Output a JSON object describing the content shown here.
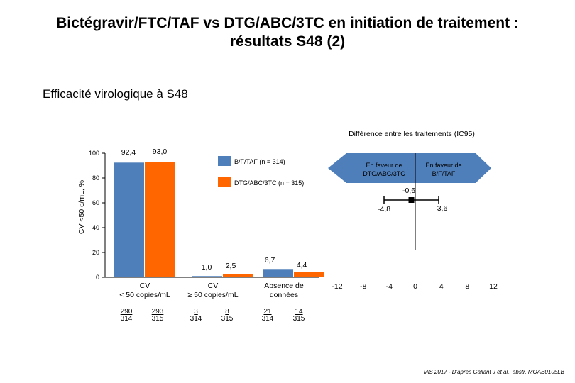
{
  "title_line1": "Bictégravir/FTC/TAF vs DTG/ABC/3TC en initiation de traitement :",
  "title_line2": "résultats S48 (2)",
  "subtitle": "Efficacité virologique à S48",
  "colors": {
    "btaf": "#4f7fba",
    "dtg": "#ff6600",
    "arrow": "#4f7fba"
  },
  "chart_data": [
    {
      "type": "bar",
      "ylabel": "CV <50 c/mL, %",
      "ylim": [
        0,
        100
      ],
      "yticks": [
        "0",
        "20",
        "40",
        "60",
        "80",
        "100"
      ],
      "categories": [
        "CV\n< 50 copies/mL",
        "CV\n≥ 50 copies/mL",
        "Absence de\ndonnées"
      ],
      "series": [
        {
          "name": "B/F/TAF (n = 314)",
          "values": [
            92.4,
            1.0,
            6.7
          ],
          "labels": [
            "92,4",
            "1,0",
            "6,7"
          ],
          "fractions": [
            [
              "290",
              "314"
            ],
            [
              "3",
              "314"
            ],
            [
              "21",
              "314"
            ]
          ]
        },
        {
          "name": "DTG/ABC/3TC (n = 315)",
          "values": [
            93.0,
            2.5,
            4.4
          ],
          "labels": [
            "93,0",
            "2,5",
            "4,4"
          ],
          "fractions": [
            [
              "293",
              "315"
            ],
            [
              "8",
              "315"
            ],
            [
              "14",
              "315"
            ]
          ]
        }
      ]
    },
    {
      "type": "forest",
      "title": "Différence entre les traitements (IC95)",
      "xticks": [
        "-12",
        "-8",
        "-4",
        "0",
        "4",
        "8",
        "12"
      ],
      "xlim": [
        -12,
        12
      ],
      "estimate": -0.6,
      "ci": [
        -4.8,
        3.6
      ],
      "estimate_label": "-0,6",
      "ci_labels": [
        "-4,8",
        "3,6"
      ],
      "arrow_left_label": "En faveur de\nDTG/ABC/3TC",
      "arrow_right_label": "En faveur de\nB/F/TAF"
    }
  ],
  "footnote": "IAS 2017 - D'après Gallant J et al., abstr. MOAB0105LB"
}
